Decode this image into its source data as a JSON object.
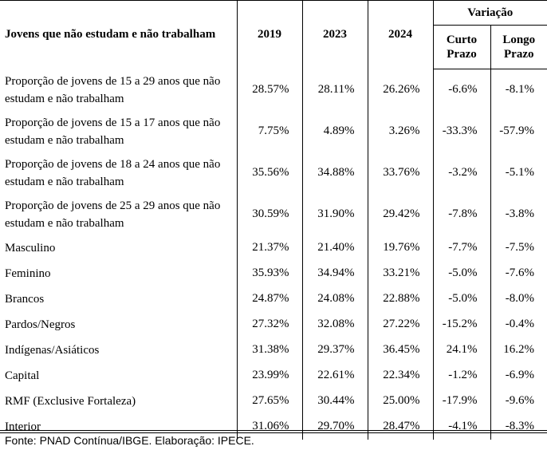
{
  "table": {
    "header": {
      "label": "Jovens que não estudam e não trabalham",
      "years": [
        "2019",
        "2023",
        "2024"
      ],
      "variation": "Variação",
      "short_term": "Curto Prazo",
      "long_term": "Longo Prazo"
    },
    "rows": [
      {
        "label": "Proporção de jovens de 15 a 29 anos que não estudam e não trabalham",
        "y2019": "28.57%",
        "y2023": "28.11%",
        "y2024": "26.26%",
        "short": "-6.6%",
        "long": "-8.1%"
      },
      {
        "label": "Proporção de jovens de 15 a 17 anos que não estudam e não trabalham",
        "y2019": "7.75%",
        "y2023": "4.89%",
        "y2024": "3.26%",
        "short": "-33.3%",
        "long": "-57.9%"
      },
      {
        "label": "Proporção de jovens de 18 a 24 anos que não estudam e não trabalham",
        "y2019": "35.56%",
        "y2023": "34.88%",
        "y2024": "33.76%",
        "short": "-3.2%",
        "long": "-5.1%"
      },
      {
        "label": "Proporção de jovens de 25 a 29 anos que não estudam e não trabalham",
        "y2019": "30.59%",
        "y2023": "31.90%",
        "y2024": "29.42%",
        "short": "-7.8%",
        "long": "-3.8%"
      },
      {
        "label": "Masculino",
        "y2019": "21.37%",
        "y2023": "21.40%",
        "y2024": "19.76%",
        "short": "-7.7%",
        "long": "-7.5%"
      },
      {
        "label": "Feminino",
        "y2019": "35.93%",
        "y2023": "34.94%",
        "y2024": "33.21%",
        "short": "-5.0%",
        "long": "-7.6%"
      },
      {
        "label": "Brancos",
        "y2019": "24.87%",
        "y2023": "24.08%",
        "y2024": "22.88%",
        "short": "-5.0%",
        "long": "-8.0%"
      },
      {
        "label": "Pardos/Negros",
        "y2019": "27.32%",
        "y2023": "32.08%",
        "y2024": "27.22%",
        "short": "-15.2%",
        "long": "-0.4%"
      },
      {
        "label": "Indígenas/Asiáticos",
        "y2019": "31.38%",
        "y2023": "29.37%",
        "y2024": "36.45%",
        "short": "24.1%",
        "long": "16.2%"
      },
      {
        "label": "Capital",
        "y2019": "23.99%",
        "y2023": "22.61%",
        "y2024": "22.34%",
        "short": "-1.2%",
        "long": "-6.9%"
      },
      {
        "label": "RMF (Exclusive Fortaleza)",
        "y2019": "27.65%",
        "y2023": "30.44%",
        "y2024": "25.00%",
        "short": "-17.9%",
        "long": "-9.6%"
      },
      {
        "label": "Interior",
        "y2019": "31.06%",
        "y2023": "29.70%",
        "y2024": "28.47%",
        "short": "-4.1%",
        "long": "-8.3%"
      }
    ]
  },
  "source": "Fonte: PNAD Contínua/IBGE. Elaboração: IPECE."
}
